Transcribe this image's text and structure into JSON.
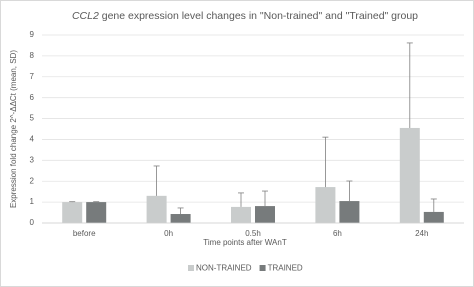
{
  "chart_data": {
    "type": "bar",
    "title": [
      "CCL2",
      " gene expression level changes in \"Non-trained\" and \"Trained\" group"
    ],
    "x_label": "Time points after WAnT",
    "y_label": "Expression fold change 2^-ΔΔCt (mean, SD)",
    "categories": [
      "before",
      "0h",
      "0.5h",
      "6h",
      "24h"
    ],
    "series": [
      {
        "name": "NON-TRAINED",
        "color": "#c9cccc",
        "values": [
          1.0,
          1.3,
          0.77,
          1.72,
          4.55
        ],
        "errors": [
          0.02,
          1.43,
          0.67,
          2.39,
          4.07
        ]
      },
      {
        "name": "TRAINED",
        "color": "#777b7c",
        "values": [
          1.0,
          0.43,
          0.81,
          1.05,
          0.53
        ],
        "errors": [
          0.02,
          0.29,
          0.72,
          0.96,
          0.62
        ]
      }
    ],
    "ylim": [
      0,
      9
    ],
    "yticks": [
      0,
      1,
      2,
      3,
      4,
      5,
      6,
      7,
      8,
      9
    ],
    "grid": true,
    "legend": "bottom"
  }
}
